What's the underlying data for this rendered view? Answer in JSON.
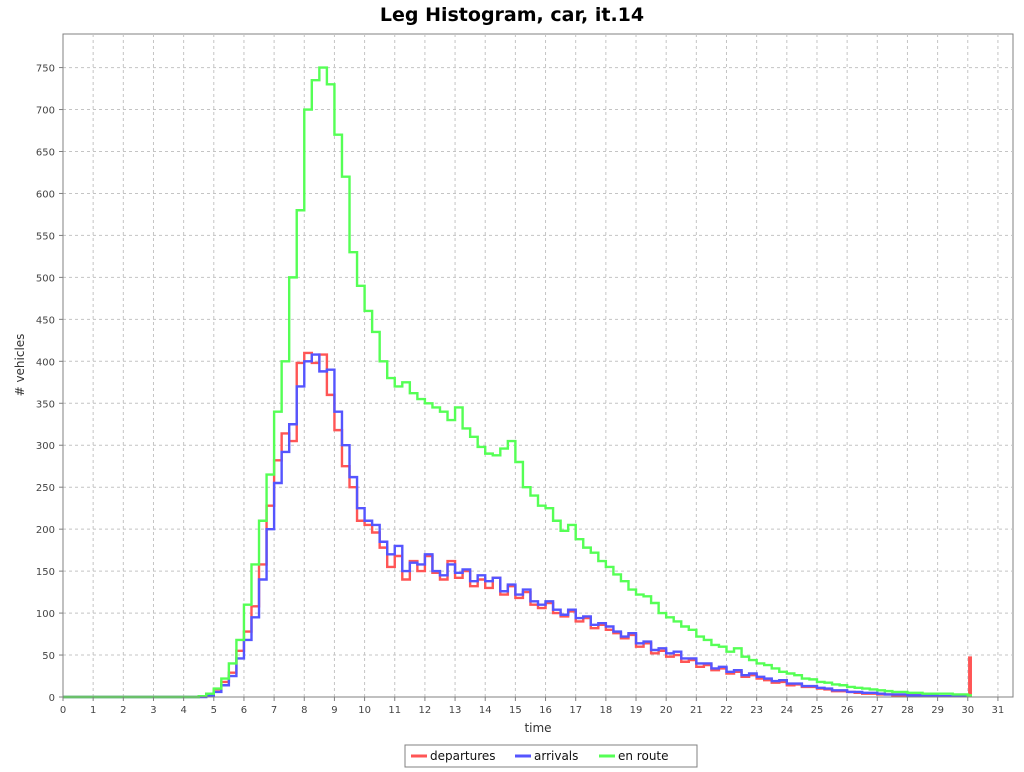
{
  "chart_data": {
    "type": "line",
    "title": "Leg Histogram, car, it.14",
    "xlabel": "time",
    "ylabel": "# vehicles",
    "xlim": [
      0,
      31.5
    ],
    "ylim": [
      0,
      790
    ],
    "x_ticks": [
      0,
      1,
      2,
      3,
      4,
      5,
      6,
      7,
      8,
      9,
      10,
      11,
      12,
      13,
      14,
      15,
      16,
      17,
      18,
      19,
      20,
      21,
      22,
      23,
      24,
      25,
      26,
      27,
      28,
      29,
      30,
      31
    ],
    "y_ticks": [
      0,
      50,
      100,
      150,
      200,
      250,
      300,
      350,
      400,
      450,
      500,
      550,
      600,
      650,
      700,
      750
    ],
    "grid": true,
    "legend_position": "bottom-center",
    "step_interpolation": "step",
    "series": [
      {
        "name": "departures",
        "color": "#ff5555",
        "points": [
          [
            0,
            0
          ],
          [
            4.25,
            0
          ],
          [
            4.5,
            1
          ],
          [
            4.75,
            4
          ],
          [
            5,
            9
          ],
          [
            5.25,
            18
          ],
          [
            5.5,
            29
          ],
          [
            5.75,
            55
          ],
          [
            6,
            78
          ],
          [
            6.25,
            108
          ],
          [
            6.5,
            158
          ],
          [
            6.75,
            228
          ],
          [
            7,
            282
          ],
          [
            7.25,
            314
          ],
          [
            7.5,
            305
          ],
          [
            7.75,
            398
          ],
          [
            8,
            410
          ],
          [
            8.25,
            398
          ],
          [
            8.5,
            408
          ],
          [
            8.75,
            360
          ],
          [
            9,
            318
          ],
          [
            9.25,
            275
          ],
          [
            9.5,
            250
          ],
          [
            9.75,
            210
          ],
          [
            10,
            205
          ],
          [
            10.25,
            196
          ],
          [
            10.5,
            178
          ],
          [
            10.75,
            155
          ],
          [
            11,
            168
          ],
          [
            11.25,
            140
          ],
          [
            11.5,
            162
          ],
          [
            11.75,
            150
          ],
          [
            12,
            168
          ],
          [
            12.25,
            148
          ],
          [
            12.5,
            140
          ],
          [
            12.75,
            162
          ],
          [
            13,
            142
          ],
          [
            13.25,
            150
          ],
          [
            13.5,
            132
          ],
          [
            13.75,
            140
          ],
          [
            14,
            130
          ],
          [
            14.25,
            142
          ],
          [
            14.5,
            122
          ],
          [
            14.75,
            132
          ],
          [
            15,
            118
          ],
          [
            15.25,
            125
          ],
          [
            15.5,
            110
          ],
          [
            15.75,
            106
          ],
          [
            16,
            112
          ],
          [
            16.25,
            100
          ],
          [
            16.5,
            96
          ],
          [
            16.75,
            102
          ],
          [
            17,
            90
          ],
          [
            17.25,
            94
          ],
          [
            17.5,
            82
          ],
          [
            17.75,
            86
          ],
          [
            18,
            80
          ],
          [
            18.25,
            76
          ],
          [
            18.5,
            70
          ],
          [
            18.75,
            74
          ],
          [
            19,
            60
          ],
          [
            19.25,
            64
          ],
          [
            19.5,
            52
          ],
          [
            19.75,
            55
          ],
          [
            20,
            48
          ],
          [
            20.25,
            50
          ],
          [
            20.5,
            42
          ],
          [
            20.75,
            44
          ],
          [
            21,
            36
          ],
          [
            21.25,
            38
          ],
          [
            21.5,
            32
          ],
          [
            21.75,
            34
          ],
          [
            22,
            28
          ],
          [
            22.25,
            30
          ],
          [
            22.5,
            24
          ],
          [
            22.75,
            26
          ],
          [
            23,
            22
          ],
          [
            23.25,
            20
          ],
          [
            23.5,
            17
          ],
          [
            23.75,
            18
          ],
          [
            24,
            14
          ],
          [
            24.25,
            15
          ],
          [
            24.5,
            12
          ],
          [
            24.75,
            12
          ],
          [
            25,
            10
          ],
          [
            25.25,
            9
          ],
          [
            25.5,
            7
          ],
          [
            25.75,
            7
          ],
          [
            26,
            6
          ],
          [
            26.25,
            5
          ],
          [
            26.5,
            4
          ],
          [
            26.75,
            4
          ],
          [
            27,
            3
          ],
          [
            27.25,
            3
          ],
          [
            27.5,
            2
          ],
          [
            27.75,
            2
          ],
          [
            28,
            2
          ],
          [
            28.5,
            1
          ],
          [
            29,
            1
          ],
          [
            29.5,
            1
          ],
          [
            30,
            1
          ],
          [
            30.05,
            47
          ],
          [
            30.1,
            0
          ]
        ]
      },
      {
        "name": "arrivals",
        "color": "#5555ff",
        "points": [
          [
            0,
            0
          ],
          [
            4.5,
            0
          ],
          [
            4.75,
            2
          ],
          [
            5,
            6
          ],
          [
            5.25,
            14
          ],
          [
            5.5,
            25
          ],
          [
            5.75,
            46
          ],
          [
            6,
            68
          ],
          [
            6.25,
            95
          ],
          [
            6.5,
            140
          ],
          [
            6.75,
            200
          ],
          [
            7,
            255
          ],
          [
            7.25,
            292
          ],
          [
            7.5,
            325
          ],
          [
            7.75,
            370
          ],
          [
            8,
            400
          ],
          [
            8.25,
            408
          ],
          [
            8.5,
            388
          ],
          [
            8.75,
            390
          ],
          [
            9,
            340
          ],
          [
            9.25,
            300
          ],
          [
            9.5,
            262
          ],
          [
            9.75,
            225
          ],
          [
            10,
            210
          ],
          [
            10.25,
            205
          ],
          [
            10.5,
            185
          ],
          [
            10.75,
            170
          ],
          [
            11,
            180
          ],
          [
            11.25,
            150
          ],
          [
            11.5,
            160
          ],
          [
            11.75,
            158
          ],
          [
            12,
            170
          ],
          [
            12.25,
            150
          ],
          [
            12.5,
            145
          ],
          [
            12.75,
            158
          ],
          [
            13,
            148
          ],
          [
            13.25,
            152
          ],
          [
            13.5,
            138
          ],
          [
            13.75,
            145
          ],
          [
            14,
            138
          ],
          [
            14.25,
            142
          ],
          [
            14.5,
            126
          ],
          [
            14.75,
            134
          ],
          [
            15,
            122
          ],
          [
            15.25,
            128
          ],
          [
            15.5,
            114
          ],
          [
            15.75,
            110
          ],
          [
            16,
            114
          ],
          [
            16.25,
            104
          ],
          [
            16.5,
            98
          ],
          [
            16.75,
            104
          ],
          [
            17,
            94
          ],
          [
            17.25,
            96
          ],
          [
            17.5,
            86
          ],
          [
            17.75,
            88
          ],
          [
            18,
            84
          ],
          [
            18.25,
            78
          ],
          [
            18.5,
            72
          ],
          [
            18.75,
            76
          ],
          [
            19,
            64
          ],
          [
            19.25,
            66
          ],
          [
            19.5,
            56
          ],
          [
            19.75,
            58
          ],
          [
            20,
            52
          ],
          [
            20.25,
            54
          ],
          [
            20.5,
            46
          ],
          [
            20.75,
            46
          ],
          [
            21,
            40
          ],
          [
            21.25,
            40
          ],
          [
            21.5,
            34
          ],
          [
            21.75,
            36
          ],
          [
            22,
            30
          ],
          [
            22.25,
            32
          ],
          [
            22.5,
            26
          ],
          [
            22.75,
            28
          ],
          [
            23,
            24
          ],
          [
            23.25,
            22
          ],
          [
            23.5,
            19
          ],
          [
            23.75,
            20
          ],
          [
            24,
            16
          ],
          [
            24.25,
            16
          ],
          [
            24.5,
            13
          ],
          [
            24.75,
            13
          ],
          [
            25,
            11
          ],
          [
            25.25,
            10
          ],
          [
            25.5,
            8
          ],
          [
            25.75,
            8
          ],
          [
            26,
            6
          ],
          [
            26.25,
            6
          ],
          [
            26.5,
            5
          ],
          [
            26.75,
            5
          ],
          [
            27,
            4
          ],
          [
            27.25,
            3
          ],
          [
            27.5,
            3
          ],
          [
            27.75,
            3
          ],
          [
            28,
            2
          ],
          [
            28.5,
            2
          ],
          [
            29,
            1
          ],
          [
            29.5,
            1
          ],
          [
            30,
            1
          ],
          [
            30.1,
            0
          ]
        ]
      },
      {
        "name": "en route",
        "color": "#55ff55",
        "points": [
          [
            0,
            0
          ],
          [
            4.25,
            0
          ],
          [
            4.5,
            1
          ],
          [
            4.75,
            4
          ],
          [
            5,
            10
          ],
          [
            5.25,
            22
          ],
          [
            5.5,
            40
          ],
          [
            5.75,
            68
          ],
          [
            6,
            110
          ],
          [
            6.25,
            158
          ],
          [
            6.5,
            210
          ],
          [
            6.75,
            265
          ],
          [
            7,
            340
          ],
          [
            7.25,
            400
          ],
          [
            7.5,
            500
          ],
          [
            7.75,
            580
          ],
          [
            8,
            700
          ],
          [
            8.25,
            735
          ],
          [
            8.5,
            750
          ],
          [
            8.75,
            730
          ],
          [
            9,
            670
          ],
          [
            9.25,
            620
          ],
          [
            9.5,
            530
          ],
          [
            9.75,
            490
          ],
          [
            10,
            460
          ],
          [
            10.25,
            435
          ],
          [
            10.5,
            400
          ],
          [
            10.75,
            380
          ],
          [
            11,
            370
          ],
          [
            11.25,
            375
          ],
          [
            11.5,
            362
          ],
          [
            11.75,
            355
          ],
          [
            12,
            350
          ],
          [
            12.25,
            345
          ],
          [
            12.5,
            340
          ],
          [
            12.75,
            330
          ],
          [
            13,
            345
          ],
          [
            13.25,
            320
          ],
          [
            13.5,
            310
          ],
          [
            13.75,
            298
          ],
          [
            14,
            290
          ],
          [
            14.25,
            288
          ],
          [
            14.5,
            296
          ],
          [
            14.75,
            305
          ],
          [
            15,
            280
          ],
          [
            15.25,
            250
          ],
          [
            15.5,
            240
          ],
          [
            15.75,
            228
          ],
          [
            16,
            225
          ],
          [
            16.25,
            210
          ],
          [
            16.5,
            198
          ],
          [
            16.75,
            205
          ],
          [
            17,
            188
          ],
          [
            17.25,
            178
          ],
          [
            17.5,
            172
          ],
          [
            17.75,
            162
          ],
          [
            18,
            155
          ],
          [
            18.25,
            146
          ],
          [
            18.5,
            138
          ],
          [
            18.75,
            128
          ],
          [
            19,
            122
          ],
          [
            19.25,
            120
          ],
          [
            19.5,
            112
          ],
          [
            19.75,
            100
          ],
          [
            20,
            95
          ],
          [
            20.25,
            90
          ],
          [
            20.5,
            84
          ],
          [
            20.75,
            80
          ],
          [
            21,
            72
          ],
          [
            21.25,
            68
          ],
          [
            21.5,
            62
          ],
          [
            21.75,
            60
          ],
          [
            22,
            54
          ],
          [
            22.25,
            58
          ],
          [
            22.5,
            48
          ],
          [
            22.75,
            44
          ],
          [
            23,
            40
          ],
          [
            23.25,
            38
          ],
          [
            23.5,
            34
          ],
          [
            23.75,
            30
          ],
          [
            24,
            28
          ],
          [
            24.25,
            26
          ],
          [
            24.5,
            22
          ],
          [
            24.75,
            21
          ],
          [
            25,
            18
          ],
          [
            25.25,
            17
          ],
          [
            25.5,
            15
          ],
          [
            25.75,
            14
          ],
          [
            26,
            12
          ],
          [
            26.25,
            11
          ],
          [
            26.5,
            10
          ],
          [
            26.75,
            9
          ],
          [
            27,
            8
          ],
          [
            27.25,
            7
          ],
          [
            27.5,
            6
          ],
          [
            27.75,
            6
          ],
          [
            28,
            5
          ],
          [
            28.5,
            4
          ],
          [
            29,
            4
          ],
          [
            29.5,
            3
          ],
          [
            30,
            2
          ],
          [
            30.1,
            0
          ]
        ]
      }
    ]
  }
}
